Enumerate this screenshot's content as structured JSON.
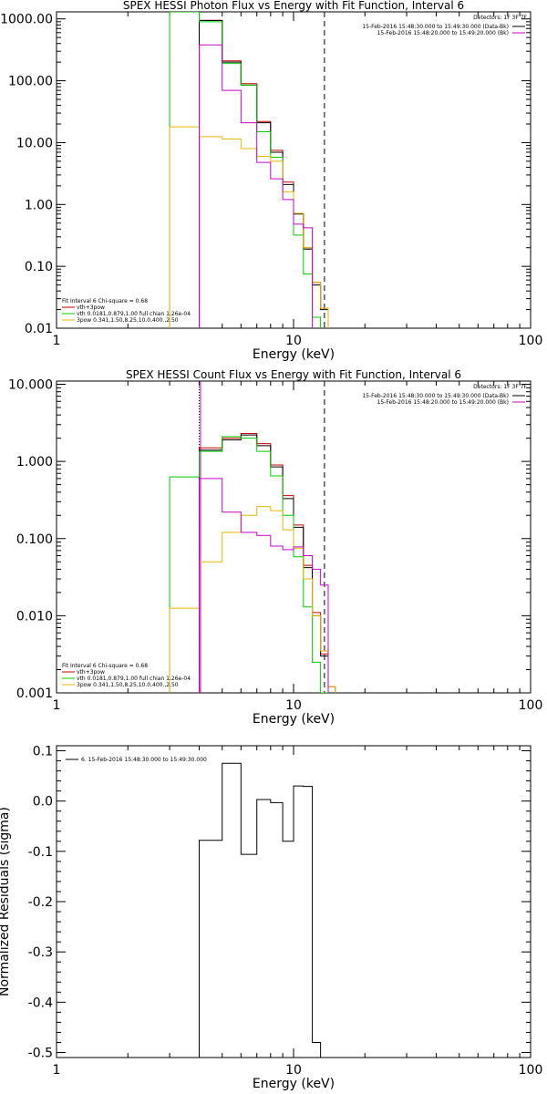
{
  "chart_data": [
    {
      "type": "line",
      "title": "SPEX HESSI Photon Flux vs Energy with Fit Function, Interval 6",
      "xlabel": "Energy (keV)",
      "ylabel": "",
      "xscale": "log",
      "yscale": "log",
      "xlim": [
        1,
        100
      ],
      "ylim": [
        0.01,
        1300
      ],
      "x_ticks": [
        "1",
        "10",
        "100"
      ],
      "y_ticks": [
        {
          "v": 1000,
          "label": "1000.00"
        },
        {
          "v": 100,
          "label": "100.00"
        },
        {
          "v": 10,
          "label": "10.00"
        },
        {
          "v": 1,
          "label": "1.00"
        },
        {
          "v": 0.1,
          "label": "0.10"
        },
        {
          "v": 0.01,
          "label": "0.01"
        }
      ],
      "vlines": [
        {
          "x": 4.0,
          "style": "solid",
          "color": "#cc00cc"
        },
        {
          "x": 13.5,
          "style": "dashed",
          "color": "#000000"
        }
      ],
      "detectors_text": "Detectors: 1F 3F 7F",
      "top_legend": [
        {
          "label": "15-Feb-2016 15:48:30.000 to 15:49:30.000 (Data-Bk)",
          "color": "#000000"
        },
        {
          "label": "15-Feb-2016 15:48:20.000 to 15:49:20.000 (Bk)",
          "color": "#cc00cc"
        }
      ],
      "fit_header": "Fit Interval  6    Chi-square = 0.68",
      "fit_legend": [
        {
          "label": "vth+3pow",
          "color": "#cc0000"
        },
        {
          "label": "vth 0.0181,0.879,1.00  full chian 1.26e-04",
          "color": "#00cc00"
        },
        {
          "label": "3pow 0.341,1.50,8.25,10.0,400.,2.50",
          "color": "#e6b800"
        }
      ],
      "edges": [
        3.0,
        4.0,
        5.0,
        6.0,
        7.0,
        8.0,
        9.0,
        10.0,
        11.0,
        12.0,
        13.0,
        14.0,
        15.0,
        16.0
      ],
      "series": [
        {
          "name": "vth+3pow",
          "color": "#cc0000",
          "values": [
            null,
            950,
            210,
            90,
            22,
            7.5,
            2.3,
            0.72,
            0.2,
            0.055,
            0.021
          ]
        },
        {
          "name": "data",
          "color": "#000000",
          "values": [
            null,
            940,
            200,
            85,
            21,
            7.0,
            2.1,
            0.7,
            0.19,
            0.05,
            0.02
          ]
        },
        {
          "name": "vth",
          "color": "#00cc00",
          "start": 3.0,
          "start_value": 0.0,
          "values": [
            1300,
            900,
            190,
            85,
            15,
            5.8,
            1.6,
            0.32,
            0.075,
            0.015
          ]
        },
        {
          "name": "3pow",
          "color": "#e6b800",
          "start": 3.0,
          "start_value": 0.0,
          "values": [
            18,
            12.5,
            11.5,
            8.0,
            6.0,
            5.0,
            1.6,
            0.72,
            0.2,
            0.055,
            0.021
          ]
        },
        {
          "name": "Bk",
          "color": "#cc00cc",
          "values": [
            null,
            380,
            70,
            21,
            4.8,
            2.6,
            1.2,
            0.48,
            0.42
          ]
        }
      ]
    },
    {
      "type": "line",
      "title": "SPEX HESSI Count Flux vs Energy with Fit Function, Interval 6",
      "xlabel": "Energy (keV)",
      "ylabel": "",
      "xscale": "log",
      "yscale": "log",
      "xlim": [
        1,
        100
      ],
      "ylim": [
        0.001,
        11
      ],
      "x_ticks": [
        "1",
        "10",
        "100"
      ],
      "y_ticks": [
        {
          "v": 10,
          "label": "10.000"
        },
        {
          "v": 1,
          "label": "1.000"
        },
        {
          "v": 0.1,
          "label": "0.100"
        },
        {
          "v": 0.01,
          "label": "0.010"
        },
        {
          "v": 0.001,
          "label": "0.001"
        }
      ],
      "vlines": [
        {
          "x": 4.0,
          "style": "dotted",
          "color": "#000000"
        },
        {
          "x": 4.05,
          "style": "solid",
          "color": "#cc00cc"
        },
        {
          "x": 13.5,
          "style": "dashed",
          "color": "#000000"
        }
      ],
      "detectors_text": "Detectors: 1F 3F 7F",
      "top_legend": [
        {
          "label": "15-Feb-2016 15:48:30.000 to 15:49:30.000 (Data-Bk)",
          "color": "#000000"
        },
        {
          "label": "15-Feb-2016 15:48:20.000 to 15:49:20.000 (Bk)",
          "color": "#cc00cc"
        }
      ],
      "fit_header": "Fit Interval  6    Chi-square = 0.68",
      "fit_legend": [
        {
          "label": "vth+3pow",
          "color": "#cc0000"
        },
        {
          "label": "vth 0.0181,0.879,1.00  full chian 1.26e-04",
          "color": "#00cc00"
        },
        {
          "label": "3pow 0.341,1.50,8.25,10.0,400.,2.50",
          "color": "#e6b800"
        }
      ],
      "edges": [
        3.0,
        4.0,
        5.0,
        6.0,
        7.0,
        8.0,
        9.0,
        10.0,
        11.0,
        12.0,
        13.0,
        14.0,
        15.0,
        16.0
      ],
      "series": [
        {
          "name": "vth+3pow",
          "color": "#cc0000",
          "values": [
            null,
            1.5,
            2.0,
            2.3,
            1.7,
            0.9,
            0.36,
            0.15,
            0.045,
            0.011,
            0.0032,
            0.0012
          ]
        },
        {
          "name": "data",
          "color": "#000000",
          "values": [
            null,
            1.4,
            1.9,
            2.2,
            1.6,
            0.85,
            0.33,
            0.14,
            0.042,
            0.01,
            0.003
          ]
        },
        {
          "name": "vth",
          "color": "#00cc00",
          "start": 3.0,
          "start_value": 0.0,
          "values": [
            0.63,
            1.35,
            2.1,
            2.0,
            1.35,
            0.65,
            0.2,
            0.058,
            0.013,
            0.0025,
            0.001
          ]
        },
        {
          "name": "3pow",
          "color": "#e6b800",
          "start": 3.0,
          "start_value": 0.0,
          "values": [
            0.0125,
            0.05,
            0.12,
            0.2,
            0.26,
            0.23,
            0.13,
            0.075,
            0.03,
            0.01,
            0.0035,
            0.0012
          ]
        },
        {
          "name": "Bk",
          "color": "#cc00cc",
          "values": [
            null,
            0.6,
            0.22,
            0.12,
            0.11,
            0.08,
            0.072,
            0.078,
            0.06,
            0.04,
            0.025
          ]
        }
      ]
    },
    {
      "type": "line",
      "title": "",
      "xlabel": "Energy (keV)",
      "ylabel": "Normalized Residuals (sigma)",
      "xscale": "log",
      "yscale": "linear",
      "xlim": [
        1,
        100
      ],
      "ylim": [
        -0.51,
        0.11
      ],
      "x_ticks": [
        "1",
        "10",
        "100"
      ],
      "y_ticks": [
        {
          "v": 0.1,
          "label": "0.1"
        },
        {
          "v": 0.0,
          "label": "0.0"
        },
        {
          "v": -0.1,
          "label": "-0.1"
        },
        {
          "v": -0.2,
          "label": "-0.2"
        },
        {
          "v": -0.3,
          "label": "-0.3"
        },
        {
          "v": -0.4,
          "label": "-0.4"
        },
        {
          "v": -0.5,
          "label": "-0.5"
        }
      ],
      "legend": [
        {
          "label": "6. 15-Feb-2016 15:48:30.000 to 15:49:30.000",
          "color": "#000000"
        }
      ],
      "edges": [
        4.0,
        5.0,
        6.0,
        7.0,
        8.0,
        9.0,
        10.0,
        11.0,
        12.0,
        13.0
      ],
      "series": [
        {
          "name": "6. 15-Feb-2016 15:48:30.000 to 15:49:30.000",
          "color": "#000000",
          "values": [
            -0.078,
            0.075,
            -0.106,
            0.003,
            -0.003,
            -0.08,
            0.03,
            0.029,
            -0.48
          ]
        }
      ]
    }
  ]
}
